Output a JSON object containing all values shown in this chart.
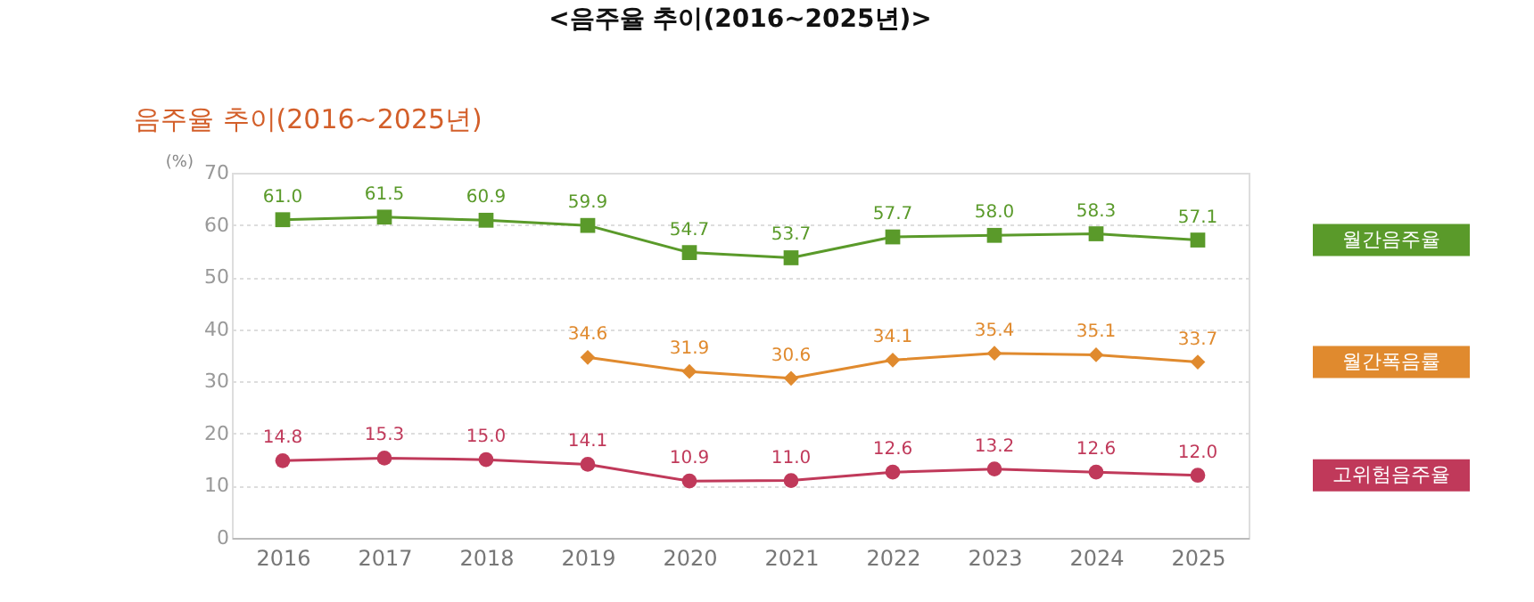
{
  "chart_data": {
    "type": "line",
    "title": "<음주율 추이(2016~2025년)>",
    "subtitle": "음주율 추이(2016~2025년)",
    "ylabel": "(%)",
    "categories": [
      "2016",
      "2017",
      "2018",
      "2019",
      "2020",
      "2021",
      "2022",
      "2023",
      "2024",
      "2025"
    ],
    "series": [
      {
        "name": "월간음주율",
        "color": "#5a9a2a",
        "marker": "square",
        "values": [
          61.0,
          61.5,
          60.9,
          59.9,
          54.7,
          53.7,
          57.7,
          58.0,
          58.3,
          57.1
        ],
        "value_labels": [
          "61.0",
          "61.5",
          "60.9",
          "59.9",
          "54.7",
          "53.7",
          "57.7",
          "58.0",
          "58.3",
          "57.1"
        ]
      },
      {
        "name": "월간폭음률",
        "color": "#e08a2e",
        "marker": "diamond",
        "values": [
          null,
          null,
          null,
          34.6,
          31.9,
          30.6,
          34.1,
          35.4,
          35.1,
          33.7
        ],
        "value_labels": [
          null,
          null,
          null,
          "34.6",
          "31.9",
          "30.6",
          "34.1",
          "35.4",
          "35.1",
          "33.7"
        ]
      },
      {
        "name": "고위험음주율",
        "color": "#c0395a",
        "marker": "circle",
        "values": [
          14.8,
          15.3,
          15.0,
          14.1,
          10.9,
          11.0,
          12.6,
          13.2,
          12.6,
          12.0
        ],
        "value_labels": [
          "14.8",
          "15.3",
          "15.0",
          "14.1",
          "10.9",
          "11.0",
          "12.6",
          "13.2",
          "12.6",
          "12.0"
        ]
      }
    ],
    "ylim": [
      0,
      70
    ],
    "yticks": [
      0,
      10,
      20,
      30,
      40,
      50,
      60,
      70
    ],
    "grid": "y",
    "data_labels": true,
    "line_style": "solid"
  }
}
